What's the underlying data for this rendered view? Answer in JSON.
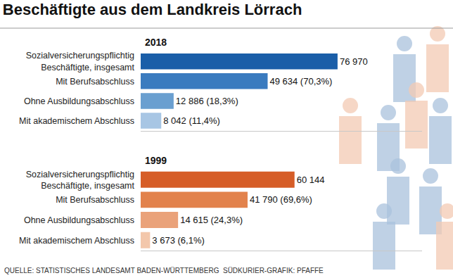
{
  "title": "Beschäftigte aus dem Landkreis Lörrach",
  "source": "QUELLE: STATISTISCHES LANDESAMT BADEN-WÜRTTEMBERG  SÜDKURIER-GRAFIK: PFAFFE",
  "chart_data": [
    {
      "type": "bar",
      "title": "2018",
      "orientation": "horizontal",
      "categories": [
        "Sozialversicherungspflichtig\nBeschäftigte, insgesamt",
        "Mit Berufsabschluss",
        "Ohne Ausbildungsabschluss",
        "Mit akademischem Abschluss"
      ],
      "values": [
        76970,
        49634,
        12886,
        8042
      ],
      "value_labels": [
        "76 970",
        "49 634 (70,3%)",
        "12 886 (18,3%)",
        "8 042 (11,4%)"
      ],
      "colors": [
        "#1a5ea8",
        "#3a7bbf",
        "#6a9fd0",
        "#a8c6e4"
      ],
      "data_labels": true,
      "tick_labels": "y",
      "grid": false,
      "xlim": [
        0,
        110000
      ]
    },
    {
      "type": "bar",
      "title": "1999",
      "orientation": "horizontal",
      "categories": [
        "Sozialversicherungspflichtig\nBeschäftigte, insgesamt",
        "Mit Berufsabschluss",
        "Ohne Ausbildungsabschluss",
        "Mit akademischem Abschluss"
      ],
      "values": [
        60144,
        41790,
        14615,
        3673
      ],
      "value_labels": [
        "60 144",
        "41 790 (69,6%)",
        "14 615 (24,3%)",
        "3 673 (6,1%)"
      ],
      "colors": [
        "#d65d27",
        "#e2824c",
        "#eaa27a",
        "#f3c7ab"
      ],
      "data_labels": true,
      "tick_labels": "y",
      "grid": false,
      "xlim": [
        0,
        110000
      ]
    }
  ]
}
